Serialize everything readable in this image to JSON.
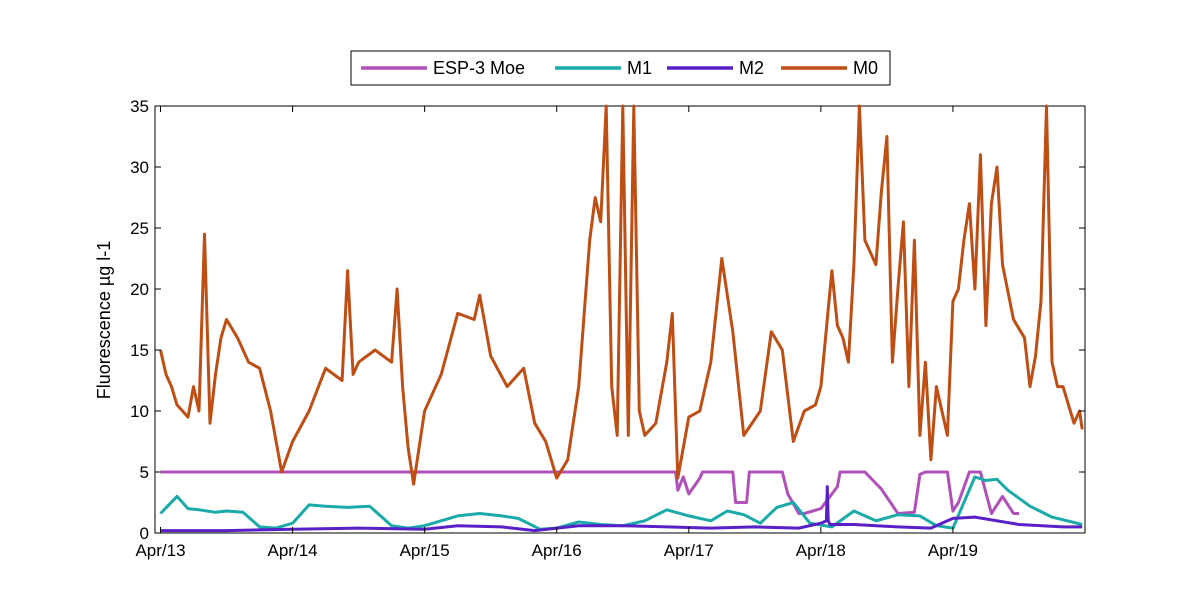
{
  "chart_data": {
    "type": "line",
    "title": "",
    "xlabel": "",
    "ylabel": "Fluorescence µg l-1",
    "xlim": [
      "2013-04-12T23:00",
      "2013-04-20T00:00"
    ],
    "ylim": [
      0,
      35
    ],
    "x_ticks": [
      "Apr/13",
      "Apr/14",
      "Apr/15",
      "Apr/16",
      "Apr/17",
      "Apr/18",
      "Apr/19"
    ],
    "y_ticks": [
      0,
      5,
      10,
      15,
      20,
      25,
      30,
      35
    ],
    "grid": false,
    "legend_position": "top-center",
    "series": [
      {
        "name": "ESP-3 Moe",
        "color": "#b050b8",
        "x": [
          "2013-04-13T00:00",
          "2013-04-16T21:36",
          "2013-04-16T22:00",
          "2013-04-16T23:00",
          "2013-04-17T00:00",
          "2013-04-17T02:00",
          "2013-04-17T02:30",
          "2013-04-17T08:00",
          "2013-04-17T08:30",
          "2013-04-17T10:30",
          "2013-04-17T11:00",
          "2013-04-17T17:00",
          "2013-04-17T18:00",
          "2013-04-17T20:00",
          "2013-04-17T21:00",
          "2013-04-18T00:00",
          "2013-04-18T03:00",
          "2013-04-18T03:30",
          "2013-04-18T08:00",
          "2013-04-18T11:00",
          "2013-04-18T14:00",
          "2013-04-18T17:00",
          "2013-04-18T18:00",
          "2013-04-18T19:00",
          "2013-04-18T23:00",
          "2013-04-19T00:00",
          "2013-04-19T01:00",
          "2013-04-19T03:00",
          "2013-04-19T05:00",
          "2013-04-19T07:00",
          "2013-04-19T09:00",
          "2013-04-19T11:00",
          "2013-04-19T12:00"
        ],
        "values": [
          5.0,
          5.0,
          3.5,
          4.6,
          3.2,
          4.5,
          5.0,
          5.0,
          2.5,
          2.5,
          5.0,
          5.0,
          3.2,
          1.6,
          1.6,
          2.0,
          3.8,
          5.0,
          5.0,
          3.6,
          1.6,
          1.7,
          4.8,
          5.0,
          5.0,
          1.8,
          2.5,
          5.0,
          5.0,
          1.6,
          3.0,
          1.6,
          1.6
        ]
      },
      {
        "name": "M1",
        "color": "#1aaaaa",
        "x": [
          "2013-04-13T00:00",
          "2013-04-13T03:00",
          "2013-04-13T05:00",
          "2013-04-13T07:00",
          "2013-04-13T10:00",
          "2013-04-13T12:00",
          "2013-04-13T15:00",
          "2013-04-13T18:00",
          "2013-04-13T21:00",
          "2013-04-14T00:00",
          "2013-04-14T03:00",
          "2013-04-14T06:00",
          "2013-04-14T10:00",
          "2013-04-14T14:00",
          "2013-04-14T18:00",
          "2013-04-14T21:00",
          "2013-04-15T00:00",
          "2013-04-15T06:00",
          "2013-04-15T10:00",
          "2013-04-15T14:00",
          "2013-04-15T17:00",
          "2013-04-15T21:00",
          "2013-04-16T00:00",
          "2013-04-16T04:00",
          "2013-04-16T08:00",
          "2013-04-16T12:00",
          "2013-04-16T16:00",
          "2013-04-16T20:00",
          "2013-04-17T00:00",
          "2013-04-17T04:00",
          "2013-04-17T07:00",
          "2013-04-17T10:00",
          "2013-04-17T13:00",
          "2013-04-17T16:00",
          "2013-04-17T19:00",
          "2013-04-17T22:00",
          "2013-04-18T02:00",
          "2013-04-18T06:00",
          "2013-04-18T10:00",
          "2013-04-18T14:00",
          "2013-04-18T18:00",
          "2013-04-18T21:00",
          "2013-04-19T00:00",
          "2013-04-19T02:00",
          "2013-04-19T04:00",
          "2013-04-19T06:00",
          "2013-04-19T08:00",
          "2013-04-19T10:00",
          "2013-04-19T14:00",
          "2013-04-19T18:00",
          "2013-04-19T23:30"
        ],
        "values": [
          1.6,
          3.0,
          2.0,
          1.9,
          1.7,
          1.8,
          1.7,
          0.5,
          0.4,
          0.8,
          2.3,
          2.2,
          2.1,
          2.2,
          0.6,
          0.4,
          0.6,
          1.4,
          1.6,
          1.4,
          1.2,
          0.3,
          0.4,
          0.9,
          0.7,
          0.6,
          1.0,
          1.9,
          1.4,
          1.0,
          1.8,
          1.5,
          0.8,
          2.1,
          2.5,
          0.8,
          0.5,
          1.8,
          1.0,
          1.5,
          1.4,
          0.6,
          0.4,
          2.5,
          4.6,
          4.3,
          4.4,
          3.5,
          2.2,
          1.3,
          0.7
        ]
      },
      {
        "name": "M2",
        "color": "#5a20c8",
        "x": [
          "2013-04-13T00:00",
          "2013-04-13T12:00",
          "2013-04-14T00:00",
          "2013-04-14T12:00",
          "2013-04-15T00:00",
          "2013-04-15T06:00",
          "2013-04-15T14:00",
          "2013-04-15T20:00",
          "2013-04-16T04:00",
          "2013-04-16T12:00",
          "2013-04-16T20:00",
          "2013-04-17T04:00",
          "2013-04-17T12:00",
          "2013-04-17T20:00",
          "2013-04-18T00:00",
          "2013-04-18T01:00",
          "2013-04-18T01:10",
          "2013-04-18T01:20",
          "2013-04-18T01:40",
          "2013-04-18T06:00",
          "2013-04-18T14:00",
          "2013-04-18T20:00",
          "2013-04-19T00:00",
          "2013-04-19T04:00",
          "2013-04-19T12:00",
          "2013-04-19T20:00",
          "2013-04-19T23:30"
        ],
        "values": [
          0.2,
          0.2,
          0.3,
          0.4,
          0.3,
          0.6,
          0.5,
          0.2,
          0.6,
          0.6,
          0.5,
          0.4,
          0.5,
          0.4,
          0.8,
          1.0,
          3.8,
          1.0,
          0.7,
          0.7,
          0.5,
          0.4,
          1.2,
          1.3,
          0.7,
          0.5,
          0.5
        ]
      },
      {
        "name": "M0",
        "color": "#bf4e14",
        "x": [
          "2013-04-13T00:00",
          "2013-04-13T01:00",
          "2013-04-13T02:00",
          "2013-04-13T03:00",
          "2013-04-13T04:00",
          "2013-04-13T05:00",
          "2013-04-13T06:00",
          "2013-04-13T07:00",
          "2013-04-13T08:00",
          "2013-04-13T09:00",
          "2013-04-13T10:00",
          "2013-04-13T11:00",
          "2013-04-13T12:00",
          "2013-04-13T14:00",
          "2013-04-13T16:00",
          "2013-04-13T18:00",
          "2013-04-13T20:00",
          "2013-04-13T22:00",
          "2013-04-14T00:00",
          "2013-04-14T03:00",
          "2013-04-14T06:00",
          "2013-04-14T09:00",
          "2013-04-14T10:00",
          "2013-04-14T11:00",
          "2013-04-14T12:00",
          "2013-04-14T15:00",
          "2013-04-14T18:00",
          "2013-04-14T19:00",
          "2013-04-14T20:00",
          "2013-04-14T21:00",
          "2013-04-14T22:00",
          "2013-04-15T00:00",
          "2013-04-15T03:00",
          "2013-04-15T06:00",
          "2013-04-15T09:00",
          "2013-04-15T10:00",
          "2013-04-15T12:00",
          "2013-04-15T15:00",
          "2013-04-15T18:00",
          "2013-04-15T20:00",
          "2013-04-15T22:00",
          "2013-04-16T00:00",
          "2013-04-16T02:00",
          "2013-04-16T04:00",
          "2013-04-16T06:00",
          "2013-04-16T07:00",
          "2013-04-16T08:00",
          "2013-04-16T09:00",
          "2013-04-16T10:00",
          "2013-04-16T11:00",
          "2013-04-16T12:00",
          "2013-04-16T13:00",
          "2013-04-16T14:00",
          "2013-04-16T15:00",
          "2013-04-16T16:00",
          "2013-04-16T18:00",
          "2013-04-16T20:00",
          "2013-04-16T21:00",
          "2013-04-16T22:00",
          "2013-04-17T00:00",
          "2013-04-17T02:00",
          "2013-04-17T04:00",
          "2013-04-17T06:00",
          "2013-04-17T08:00",
          "2013-04-17T10:00",
          "2013-04-17T13:00",
          "2013-04-17T15:00",
          "2013-04-17T17:00",
          "2013-04-17T19:00",
          "2013-04-17T21:00",
          "2013-04-17T23:00",
          "2013-04-18T00:00",
          "2013-04-18T02:00",
          "2013-04-18T03:00",
          "2013-04-18T04:00",
          "2013-04-18T05:00",
          "2013-04-18T06:00",
          "2013-04-18T07:00",
          "2013-04-18T08:00",
          "2013-04-18T10:00",
          "2013-04-18T11:00",
          "2013-04-18T12:00",
          "2013-04-18T13:00",
          "2013-04-18T14:00",
          "2013-04-18T15:00",
          "2013-04-18T16:00",
          "2013-04-18T17:00",
          "2013-04-18T18:00",
          "2013-04-18T19:00",
          "2013-04-18T20:00",
          "2013-04-18T21:00",
          "2013-04-18T22:00",
          "2013-04-18T23:00",
          "2013-04-19T00:00",
          "2013-04-19T01:00",
          "2013-04-19T02:00",
          "2013-04-19T03:00",
          "2013-04-19T04:00",
          "2013-04-19T05:00",
          "2013-04-19T06:00",
          "2013-04-19T07:00",
          "2013-04-19T08:00",
          "2013-04-19T09:00",
          "2013-04-19T11:00",
          "2013-04-19T13:00",
          "2013-04-19T14:00",
          "2013-04-19T15:00",
          "2013-04-19T16:00",
          "2013-04-19T17:00",
          "2013-04-19T18:00",
          "2013-04-19T19:00",
          "2013-04-19T20:00",
          "2013-04-19T21:00",
          "2013-04-19T22:00",
          "2013-04-19T23:00",
          "2013-04-19T23:30"
        ],
        "values": [
          15.0,
          13.0,
          12.0,
          10.5,
          10.0,
          9.5,
          12.0,
          10.0,
          24.5,
          9.0,
          13.0,
          16.0,
          17.5,
          16.0,
          14.0,
          13.5,
          10.0,
          5.0,
          7.5,
          10.0,
          13.5,
          12.5,
          21.5,
          13.0,
          14.0,
          15.0,
          14.0,
          20.0,
          12.0,
          7.0,
          4.0,
          10.0,
          13.0,
          18.0,
          17.5,
          19.5,
          14.5,
          12.0,
          13.5,
          9.0,
          7.5,
          4.5,
          6.0,
          12.0,
          24.0,
          27.5,
          25.5,
          35.0,
          12.0,
          8.0,
          35.0,
          8.0,
          35.0,
          10.0,
          8.0,
          9.0,
          14.0,
          18.0,
          4.5,
          9.5,
          10.0,
          14.0,
          22.5,
          16.5,
          8.0,
          10.0,
          16.5,
          15.0,
          7.5,
          10.0,
          10.5,
          12.0,
          21.5,
          17.0,
          16.0,
          14.0,
          22.0,
          35.0,
          24.0,
          22.0,
          28.0,
          32.5,
          14.0,
          20.0,
          25.5,
          12.0,
          24.0,
          8.0,
          14.0,
          6.0,
          12.0,
          10.0,
          8.0,
          19.0,
          20.0,
          24.0,
          27.0,
          20.0,
          31.0,
          17.0,
          27.0,
          30.0,
          22.0,
          17.5,
          16.0,
          12.0,
          14.5,
          19.0,
          35.0,
          14.0,
          12.0,
          12.0,
          10.5,
          9.0,
          10.0,
          8.5
        ]
      }
    ]
  }
}
